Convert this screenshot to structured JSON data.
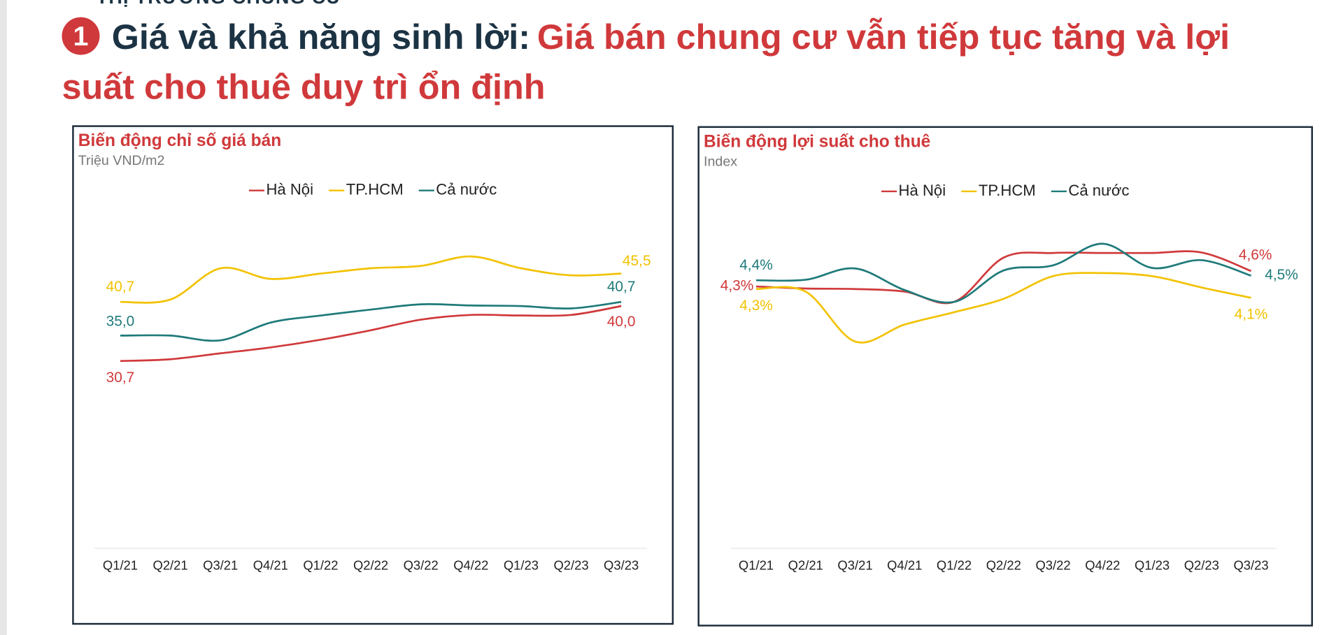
{
  "header": {
    "section": "THỊ TRƯỜNG CHUNG CƯ",
    "number": "1",
    "title_lead": "Giá và khả năng sinh lời:",
    "title_main": "Giá bán chung cư vẫn tiếp tục tăng và lợi suất cho thuê duy trì ổn định"
  },
  "chart_data": [
    {
      "type": "line",
      "title": "Biến động chỉ số giá bán",
      "subtitle": "Triệu VND/m2",
      "categories": [
        "Q1/21",
        "Q2/21",
        "Q3/21",
        "Q4/21",
        "Q1/22",
        "Q2/22",
        "Q3/22",
        "Q4/22",
        "Q1/23",
        "Q2/23",
        "Q3/23"
      ],
      "ylim": [
        0,
        60
      ],
      "series": [
        {
          "name": "Hà Nội",
          "color": "#d0393b",
          "values": [
            30.7,
            31.0,
            32.0,
            33.0,
            34.3,
            35.9,
            37.7,
            38.5,
            38.4,
            38.5,
            40.0
          ],
          "value_labels": [
            "30,7",
            null,
            null,
            null,
            null,
            null,
            null,
            null,
            null,
            null,
            "40,0"
          ]
        },
        {
          "name": "TP.HCM",
          "color": "#f2c200",
          "values": [
            40.7,
            41.1,
            46.4,
            44.6,
            45.5,
            46.4,
            46.8,
            48.4,
            46.4,
            45.2,
            45.5
          ],
          "value_labels": [
            "40,7",
            null,
            null,
            null,
            null,
            null,
            null,
            null,
            null,
            null,
            "45,5"
          ]
        },
        {
          "name": "Cả nước",
          "color": "#1f7a7a",
          "values": [
            35.0,
            35.0,
            34.2,
            37.2,
            38.4,
            39.4,
            40.3,
            40.1,
            40.0,
            39.6,
            40.7
          ],
          "value_labels": [
            "35,0",
            null,
            null,
            null,
            null,
            null,
            null,
            null,
            null,
            null,
            "40,7"
          ]
        }
      ]
    },
    {
      "type": "line",
      "title": "Biến động lợi suất cho thuê",
      "subtitle": "Index",
      "categories": [
        "Q1/21",
        "Q2/21",
        "Q3/21",
        "Q4/21",
        "Q1/22",
        "Q2/22",
        "Q3/22",
        "Q4/22",
        "Q1/23",
        "Q2/23",
        "Q3/23"
      ],
      "ylim": [
        3.0,
        5.5
      ],
      "series": [
        {
          "name": "Hà Nội",
          "color": "#d0393b",
          "values": [
            4.32,
            4.28,
            4.27,
            4.22,
            4.02,
            4.88,
            4.97,
            4.97,
            4.97,
            4.98,
            4.62
          ],
          "value_labels": [
            "4,3%",
            null,
            null,
            null,
            null,
            null,
            null,
            null,
            null,
            null,
            "4,6%"
          ]
        },
        {
          "name": "TP.HCM",
          "color": "#f2c200",
          "values": [
            4.27,
            4.22,
            3.25,
            3.58,
            3.82,
            4.08,
            4.52,
            4.58,
            4.52,
            4.3,
            4.1
          ],
          "value_labels": [
            "4,3%",
            null,
            null,
            null,
            null,
            null,
            null,
            null,
            null,
            null,
            "4,1%"
          ]
        },
        {
          "name": "Cả nước",
          "color": "#1f7a7a",
          "values": [
            4.44,
            4.45,
            4.67,
            4.25,
            4.02,
            4.63,
            4.73,
            5.15,
            4.68,
            4.83,
            4.53
          ],
          "value_labels": [
            "4,4%",
            null,
            null,
            null,
            null,
            null,
            null,
            null,
            null,
            null,
            "4,5%"
          ]
        }
      ]
    }
  ]
}
